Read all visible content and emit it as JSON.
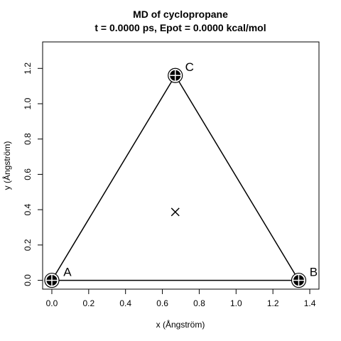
{
  "chart_data": {
    "type": "scatter",
    "title": "MD of cyclopropane",
    "subtitle": "t  =  0.0000 ps,   Epot  =   0.0000 kcal/mol",
    "xlabel": "x (Ångström)",
    "ylabel": "y (Ångström)",
    "xlim": [
      -0.05,
      1.45
    ],
    "ylim": [
      -0.05,
      1.35
    ],
    "xticks": [
      "0.0",
      "0.2",
      "0.4",
      "0.6",
      "0.8",
      "1.0",
      "1.2",
      "1.4"
    ],
    "yticks": [
      "0.0",
      "0.2",
      "0.4",
      "0.6",
      "0.8",
      "1.0",
      "1.2"
    ],
    "atoms": [
      {
        "label": "A",
        "x": 0.0,
        "y": 0.0
      },
      {
        "label": "B",
        "x": 1.34,
        "y": 0.0
      },
      {
        "label": "C",
        "x": 0.67,
        "y": 1.16
      }
    ],
    "bonds": [
      [
        0,
        1
      ],
      [
        1,
        2
      ],
      [
        2,
        0
      ]
    ],
    "center": {
      "x": 0.67,
      "y": 0.387
    },
    "grid": false
  }
}
